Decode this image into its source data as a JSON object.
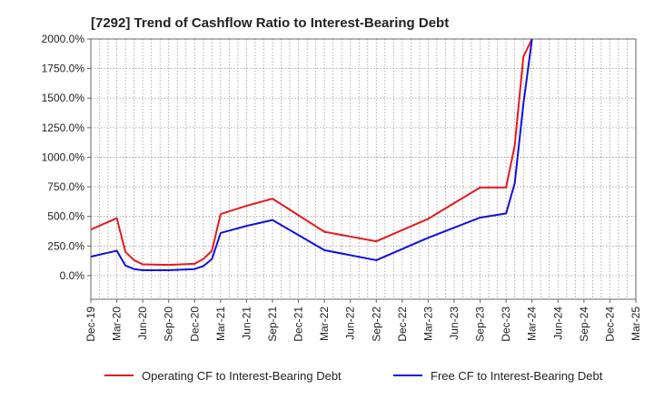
{
  "chart_data": {
    "type": "line",
    "title": "[7292]  Trend of Cashflow Ratio to Interest-Bearing Debt",
    "xlabel": "",
    "ylabel": "",
    "x_ticks": [
      "Dec-19",
      "Mar-20",
      "Jun-20",
      "Sep-20",
      "Dec-20",
      "Mar-21",
      "Jun-21",
      "Sep-21",
      "Dec-21",
      "Mar-22",
      "Jun-22",
      "Sep-22",
      "Dec-22",
      "Mar-23",
      "Jun-23",
      "Sep-23",
      "Dec-23",
      "Mar-24",
      "Jun-24",
      "Sep-24",
      "Dec-24",
      "Mar-25"
    ],
    "y_ticks": [
      "0.0%",
      "250.0%",
      "500.0%",
      "750.0%",
      "1000.0%",
      "1250.0%",
      "1500.0%",
      "1750.0%",
      "2000.0%"
    ],
    "ylim": [
      -200,
      2000
    ],
    "grid": true,
    "legend_position": "bottom",
    "series": [
      {
        "name": "Operating CF to Interest-Bearing Debt",
        "color": "#e41a1c",
        "points": [
          [
            "Dec-19",
            390
          ],
          [
            "Mar-20",
            485
          ],
          [
            "Apr-20",
            200
          ],
          [
            "May-20",
            130
          ],
          [
            "Jun-20",
            95
          ],
          [
            "Sep-20",
            90
          ],
          [
            "Dec-20",
            100
          ],
          [
            "Jan-21",
            140
          ],
          [
            "Feb-21",
            210
          ],
          [
            "Mar-21",
            520
          ],
          [
            "Jun-21",
            590
          ],
          [
            "Sep-21",
            650
          ],
          [
            "Mar-22",
            370
          ],
          [
            "Sep-22",
            290
          ],
          [
            "Mar-23",
            480
          ],
          [
            "Sep-23",
            745
          ],
          [
            "Dec-23",
            745
          ],
          [
            "Jan-24",
            1100
          ],
          [
            "Feb-24",
            1850
          ],
          [
            "Mar-24",
            2000
          ]
        ]
      },
      {
        "name": "Free CF to Interest-Bearing Debt",
        "color": "#1010dd",
        "points": [
          [
            "Dec-19",
            160
          ],
          [
            "Mar-20",
            210
          ],
          [
            "Apr-20",
            85
          ],
          [
            "May-20",
            55
          ],
          [
            "Jun-20",
            45
          ],
          [
            "Sep-20",
            45
          ],
          [
            "Dec-20",
            55
          ],
          [
            "Jan-21",
            80
          ],
          [
            "Feb-21",
            140
          ],
          [
            "Mar-21",
            360
          ],
          [
            "Jun-21",
            420
          ],
          [
            "Sep-21",
            470
          ],
          [
            "Mar-22",
            215
          ],
          [
            "Sep-22",
            130
          ],
          [
            "Mar-23",
            320
          ],
          [
            "Sep-23",
            490
          ],
          [
            "Dec-23",
            525
          ],
          [
            "Jan-24",
            780
          ],
          [
            "Feb-24",
            1450
          ],
          [
            "Mar-24",
            2000
          ]
        ]
      }
    ]
  }
}
